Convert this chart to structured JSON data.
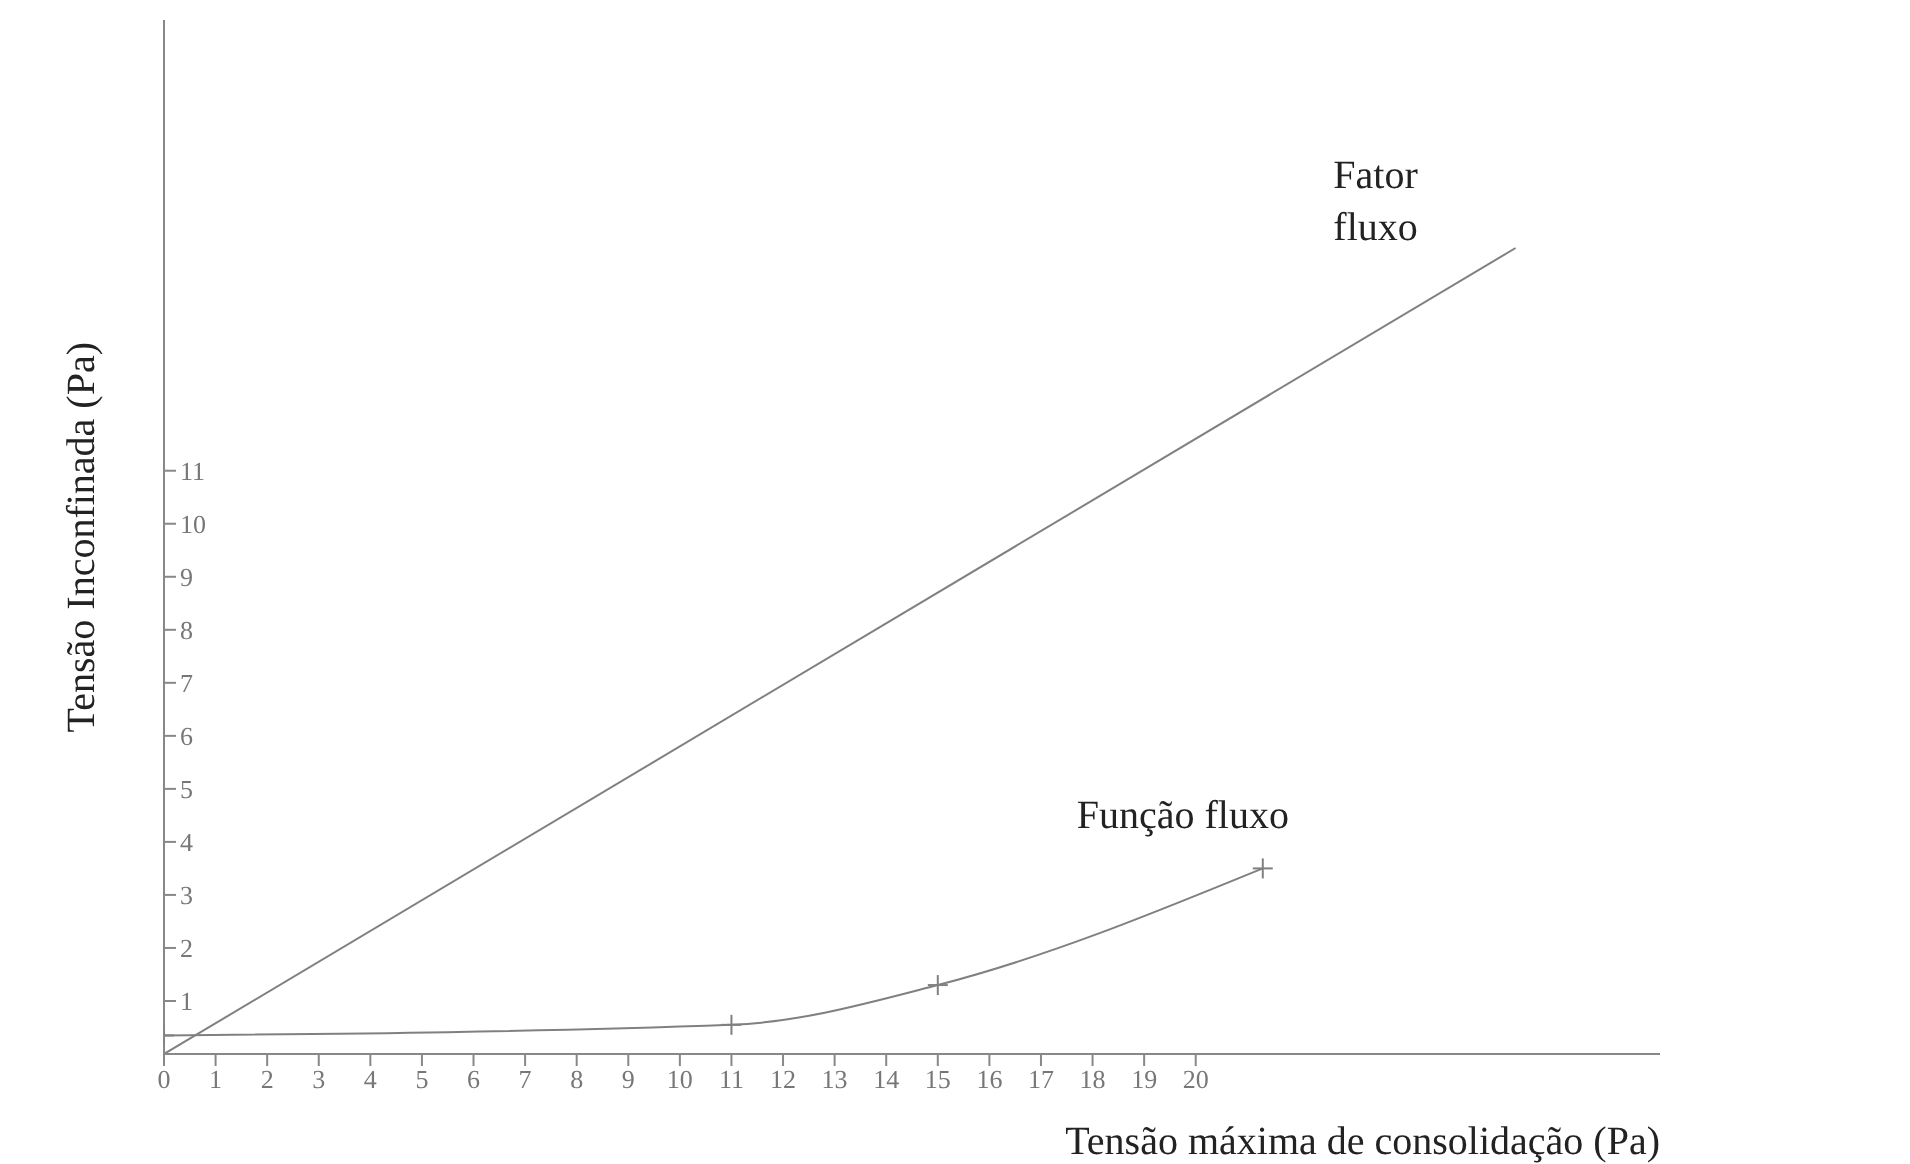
{
  "chart_data": {
    "type": "line",
    "xlabel": "Tensão máxima de consolidação (Pa)",
    "ylabel": "Tensão Inconfinada (Pa)",
    "xlim": [
      0,
      29
    ],
    "ylim": [
      0,
      19.5
    ],
    "xticks": [
      0,
      1,
      2,
      3,
      4,
      5,
      6,
      7,
      8,
      9,
      10,
      11,
      12,
      13,
      14,
      15,
      16,
      17,
      18,
      19,
      20
    ],
    "yticks": [
      {
        "value": 0,
        "label": null
      },
      1,
      2,
      3,
      4,
      5,
      6,
      7,
      8,
      9,
      10,
      11
    ],
    "grid": false,
    "legend": false,
    "series": [
      {
        "name": "Fator fluxo",
        "color": "#808080",
        "x": [
          0,
          26.2
        ],
        "values": [
          0,
          15.2
        ],
        "marker": "none"
      },
      {
        "name": "Função fluxo",
        "color": "#808080",
        "x": [
          0,
          11,
          15,
          21.3
        ],
        "values": [
          0.35,
          0.55,
          1.3,
          3.5
        ],
        "marker": "cross"
      }
    ]
  }
}
